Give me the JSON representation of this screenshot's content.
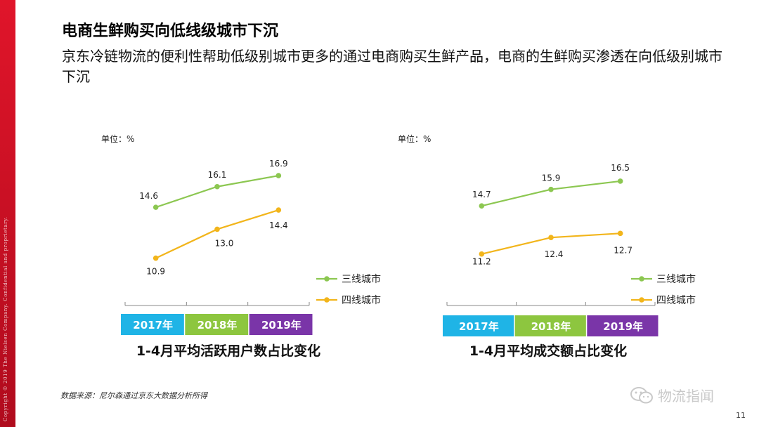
{
  "header": {
    "title": "电商生鲜购买向低线级城市下沉",
    "subtitle": "京东冷链物流的便利性帮助低级别城市更多的通过电商购买生鲜产品，电商的生鲜购买渗透在向低级别城市下沉"
  },
  "sidebar_text": "Copyright © 2019 The Nielsen Company. Confidential and proprietary.",
  "colors": {
    "brand_red": "#d7192c",
    "series_green": "#8cc751",
    "series_yellow": "#f2b51b",
    "year_2017": "#1fb4e6",
    "year_2018": "#8dc63f",
    "year_2019": "#7a35a8"
  },
  "chart_data": [
    {
      "type": "line",
      "title": "1-4月平均活跃用户数占比变化",
      "unit_label": "单位：%",
      "categories": [
        "2017年",
        "2018年",
        "2019年"
      ],
      "series": [
        {
          "name": "三线城市",
          "values": [
            14.6,
            16.1,
            16.9
          ],
          "labels": [
            "14.6",
            "16.1",
            "16.9"
          ]
        },
        {
          "name": "四线城市",
          "values": [
            10.9,
            13.0,
            14.4
          ],
          "labels": [
            "10.9",
            "13.0",
            "14.4"
          ]
        }
      ],
      "legend_position": "right",
      "grid": false
    },
    {
      "type": "line",
      "title": "1-4月平均成交额占比变化",
      "unit_label": "单位：%",
      "categories": [
        "2017年",
        "2018年",
        "2019年"
      ],
      "series": [
        {
          "name": "三线城市",
          "values": [
            14.7,
            15.9,
            16.5
          ],
          "labels": [
            "14.7",
            "15.9",
            "16.5"
          ]
        },
        {
          "name": "四线城市",
          "values": [
            11.2,
            12.4,
            12.7
          ],
          "labels": [
            "11.2",
            "12.4",
            "12.7"
          ]
        }
      ],
      "legend_position": "right",
      "grid": false
    }
  ],
  "footer": {
    "source": "数据来源：尼尔森通过京东大数据分析所得",
    "watermark": "物流指闻",
    "page_number": "11"
  }
}
